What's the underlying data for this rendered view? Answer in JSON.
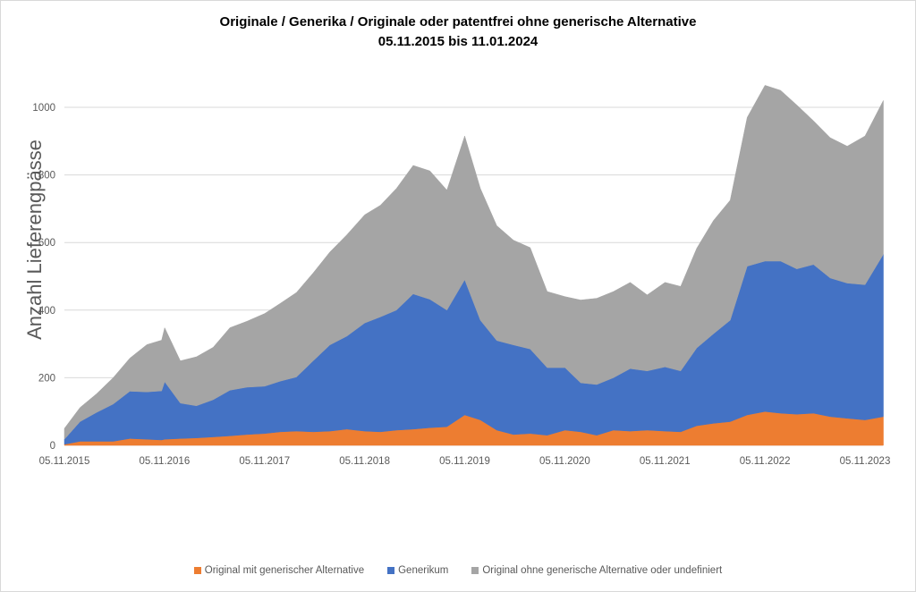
{
  "chart_data": {
    "type": "area",
    "stacked": true,
    "title_line1": "Originale / Generika  / Originale oder patentfrei ohne generische Alternative",
    "title_line2": "05.11.2015 bis  11.01.2024",
    "ylabel": "Anzahl Lieferengpässe",
    "xlabel": "",
    "ylim": [
      0,
      1100
    ],
    "y_ticks": [
      0,
      200,
      400,
      600,
      800,
      1000
    ],
    "y_tick_labels": [
      "0",
      "200",
      "400",
      "600",
      "800",
      "1000"
    ],
    "x_tick_labels": [
      "05.11.2015",
      "05.11.2016",
      "05.11.2017",
      "05.11.2018",
      "05.11.2019",
      "05.11.2020",
      "05.11.2021",
      "05.11.2022",
      "05.11.2023"
    ],
    "x": [
      "2015-11-05",
      "2016-01-01",
      "2016-03-01",
      "2016-05-01",
      "2016-07-01",
      "2016-09-01",
      "2016-10-25",
      "2016-11-05",
      "2017-01-01",
      "2017-03-01",
      "2017-05-01",
      "2017-07-01",
      "2017-09-01",
      "2017-11-05",
      "2018-01-01",
      "2018-03-01",
      "2018-05-01",
      "2018-07-01",
      "2018-09-01",
      "2018-11-05",
      "2019-01-01",
      "2019-03-01",
      "2019-05-01",
      "2019-07-01",
      "2019-09-01",
      "2019-11-05",
      "2020-01-01",
      "2020-03-01",
      "2020-05-01",
      "2020-07-01",
      "2020-09-01",
      "2020-11-05",
      "2021-01-01",
      "2021-03-01",
      "2021-05-01",
      "2021-07-01",
      "2021-09-01",
      "2021-11-05",
      "2022-01-01",
      "2022-03-01",
      "2022-05-01",
      "2022-07-01",
      "2022-09-01",
      "2022-11-05",
      "2023-01-01",
      "2023-03-01",
      "2023-05-01",
      "2023-07-01",
      "2023-09-01",
      "2023-11-05",
      "2024-01-11"
    ],
    "series": [
      {
        "name": "Original mit generischer Alternative",
        "color": "#ED7D31",
        "values": [
          3,
          12,
          12,
          12,
          20,
          18,
          16,
          18,
          20,
          22,
          25,
          28,
          32,
          35,
          40,
          42,
          40,
          42,
          48,
          42,
          40,
          45,
          48,
          52,
          55,
          90,
          75,
          45,
          32,
          35,
          30,
          45,
          40,
          30,
          45,
          42,
          45,
          42,
          40,
          58,
          65,
          70,
          90,
          100,
          95,
          92,
          95,
          85,
          80,
          75,
          85
        ]
      },
      {
        "name": "Generikum",
        "color": "#4472C4",
        "values": [
          15,
          58,
          85,
          110,
          140,
          140,
          145,
          170,
          105,
          95,
          110,
          135,
          140,
          140,
          150,
          160,
          210,
          255,
          275,
          320,
          340,
          355,
          400,
          380,
          345,
          400,
          295,
          265,
          265,
          250,
          200,
          185,
          145,
          150,
          155,
          185,
          175,
          190,
          180,
          230,
          265,
          300,
          440,
          445,
          450,
          430,
          440,
          410,
          400,
          400,
          480
        ]
      },
      {
        "name": "Original ohne generische Alternative oder undefiniert",
        "color": "#A5A5A5",
        "values": [
          32,
          42,
          55,
          78,
          98,
          140,
          150,
          160,
          125,
          145,
          155,
          185,
          195,
          215,
          230,
          250,
          260,
          275,
          300,
          320,
          330,
          360,
          380,
          380,
          355,
          425,
          390,
          340,
          310,
          300,
          225,
          210,
          245,
          255,
          255,
          255,
          225,
          250,
          250,
          295,
          335,
          355,
          440,
          520,
          505,
          485,
          425,
          415,
          405,
          440,
          455
        ]
      }
    ],
    "legend_position": "bottom",
    "grid": true
  }
}
